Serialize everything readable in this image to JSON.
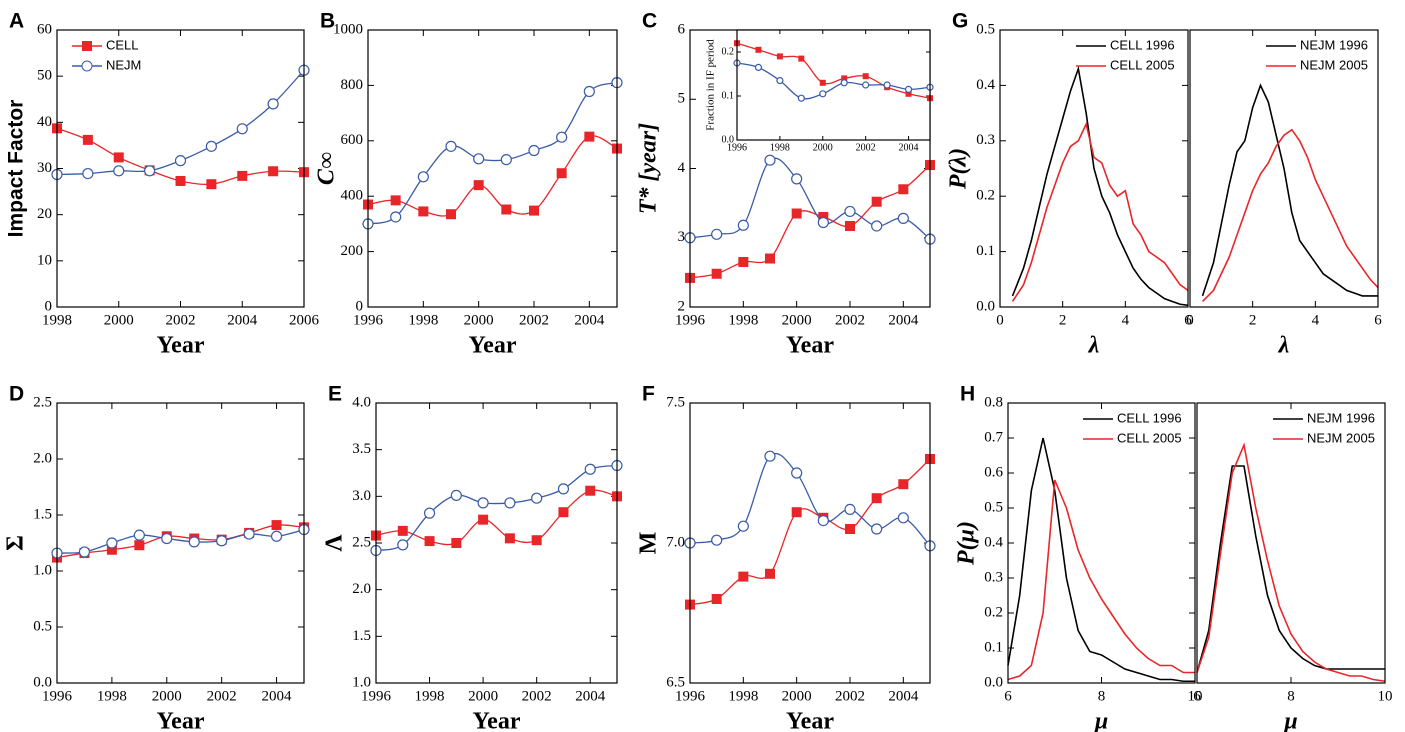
{
  "chart_data": [
    {
      "type": "line",
      "panel": "A",
      "xlabel": "Year",
      "ylabel": "Impact Factor",
      "smooth": true,
      "legend": "upper left",
      "x": [
        1998,
        1999,
        2000,
        2001,
        2002,
        2003,
        2004,
        2005,
        2006
      ],
      "xlim": [
        1998,
        2006
      ],
      "xticks": [
        1998,
        2000,
        2002,
        2004,
        2006
      ],
      "ylim": [
        0,
        60
      ],
      "yticks": [
        0,
        10,
        20,
        30,
        40,
        50,
        60
      ],
      "series": [
        {
          "name": "CELL",
          "color": "#e8262a",
          "marker": "square",
          "values": [
            38.7,
            36.2,
            32.4,
            29.6,
            27.3,
            26.6,
            28.4,
            29.4,
            29.2
          ]
        },
        {
          "name": "NEJM",
          "color": "#3a5ba8",
          "marker": "circle",
          "values": [
            28.7,
            28.9,
            29.5,
            29.5,
            31.7,
            34.8,
            38.6,
            44.0,
            51.3
          ]
        }
      ]
    },
    {
      "type": "line",
      "panel": "B",
      "xlabel": "Year",
      "ylabel": "C∞",
      "smooth": true,
      "x": [
        1996,
        1997,
        1998,
        1999,
        2000,
        2001,
        2002,
        2003,
        2004,
        2005
      ],
      "xlim": [
        1996,
        2005
      ],
      "xticks": [
        1996,
        1998,
        2000,
        2002,
        2004
      ],
      "ylim": [
        0,
        1000
      ],
      "yticks": [
        0,
        200,
        400,
        600,
        800,
        1000
      ],
      "series": [
        {
          "color": "#e8262a",
          "marker": "square",
          "values": [
            370,
            385,
            345,
            335,
            440,
            352,
            348,
            483,
            615,
            572
          ]
        },
        {
          "color": "#3a5ba8",
          "marker": "circle",
          "values": [
            300,
            325,
            470,
            580,
            535,
            532,
            565,
            613,
            778,
            810
          ]
        }
      ]
    },
    {
      "type": "line",
      "panel": "C",
      "xlabel": "Year",
      "ylabel": "T* [year]",
      "smooth": true,
      "x": [
        1996,
        1997,
        1998,
        1999,
        2000,
        2001,
        2002,
        2003,
        2004,
        2005
      ],
      "xlim": [
        1996,
        2005
      ],
      "xticks": [
        1996,
        1998,
        2000,
        2002,
        2004
      ],
      "ylim": [
        2,
        6
      ],
      "yticks": [
        2,
        3,
        4,
        5,
        6
      ],
      "series": [
        {
          "color": "#e8262a",
          "marker": "square",
          "values": [
            2.42,
            2.48,
            2.65,
            2.7,
            3.35,
            3.3,
            3.17,
            3.52,
            3.7,
            4.05
          ]
        },
        {
          "color": "#3a5ba8",
          "marker": "circle",
          "values": [
            3.0,
            3.05,
            3.18,
            4.12,
            3.85,
            3.22,
            3.38,
            3.17,
            3.28,
            2.98
          ]
        }
      ]
    },
    {
      "type": "line",
      "ylabel": "Fraction in IF period",
      "smooth": true,
      "x": [
        1996,
        1997,
        1998,
        1999,
        2000,
        2001,
        2002,
        2003,
        2004,
        2005
      ],
      "xlim": [
        1996,
        2005
      ],
      "xticks": [
        1996,
        1998,
        2000,
        2002,
        2004
      ],
      "ylim": [
        0,
        0.25
      ],
      "yticks": [
        {
          "value": 0,
          "label": "0.0"
        },
        0.1,
        0.2
      ],
      "series": [
        {
          "color": "#e8262a",
          "marker": "square",
          "values": [
            0.22,
            0.205,
            0.19,
            0.185,
            0.13,
            0.14,
            0.145,
            0.12,
            0.105,
            0.095
          ]
        },
        {
          "color": "#3a5ba8",
          "marker": "circle",
          "values": [
            0.175,
            0.165,
            0.135,
            0.095,
            0.105,
            0.13,
            0.125,
            0.125,
            0.115,
            0.12
          ]
        }
      ]
    },
    {
      "type": "line",
      "panel": "G",
      "xlabel": "λ",
      "ylabel": "P(λ)",
      "legend": "upper right",
      "x": [
        0.4,
        0.75,
        1,
        1.25,
        1.5,
        1.75,
        2,
        2.25,
        2.5,
        2.75,
        3,
        3.25,
        3.5,
        3.75,
        4,
        4.25,
        4.5,
        4.75,
        5,
        5.25,
        5.5,
        5.75,
        6
      ],
      "xlim": [
        0,
        6
      ],
      "xticks": [
        0,
        2,
        4,
        6
      ],
      "ylim": [
        0,
        0.5
      ],
      "yticks": [
        {
          "value": 0,
          "label": "0.0"
        },
        0.1,
        0.2,
        0.3,
        0.4,
        0.5
      ],
      "series": [
        {
          "name": "CELL 1996",
          "color": "#000000",
          "values": [
            0.02,
            0.07,
            0.12,
            0.18,
            0.24,
            0.29,
            0.34,
            0.39,
            0.43,
            0.35,
            0.25,
            0.2,
            0.17,
            0.13,
            0.1,
            0.07,
            0.05,
            0.035,
            0.025,
            0.015,
            0.01,
            0.005,
            0.003
          ]
        },
        {
          "name": "CELL 2005",
          "color": "#e8262a",
          "values": [
            0.01,
            0.04,
            0.08,
            0.13,
            0.18,
            0.22,
            0.26,
            0.29,
            0.3,
            0.33,
            0.27,
            0.26,
            0.22,
            0.2,
            0.21,
            0.15,
            0.13,
            0.1,
            0.09,
            0.08,
            0.06,
            0.04,
            0.03
          ]
        }
      ]
    },
    {
      "type": "line",
      "xlabel": "λ",
      "legend": "upper right",
      "x": [
        0.4,
        0.75,
        1,
        1.25,
        1.5,
        1.75,
        2,
        2.25,
        2.5,
        2.75,
        3,
        3.25,
        3.5,
        3.75,
        4,
        4.25,
        4.5,
        4.75,
        5,
        5.25,
        5.5,
        5.75,
        6
      ],
      "xlim": [
        0,
        6
      ],
      "xticks": [
        0,
        2,
        4,
        6
      ],
      "ylim": [
        0,
        0.5
      ],
      "series": [
        {
          "name": "NEJM 1996",
          "color": "#000000",
          "values": [
            0.02,
            0.08,
            0.15,
            0.22,
            0.28,
            0.3,
            0.36,
            0.4,
            0.37,
            0.31,
            0.25,
            0.17,
            0.12,
            0.1,
            0.08,
            0.06,
            0.05,
            0.04,
            0.03,
            0.025,
            0.02,
            0.02,
            0.02
          ]
        },
        {
          "name": "NEJM 2005",
          "color": "#e8262a",
          "values": [
            0.01,
            0.03,
            0.06,
            0.09,
            0.13,
            0.17,
            0.21,
            0.24,
            0.26,
            0.29,
            0.31,
            0.32,
            0.3,
            0.27,
            0.23,
            0.2,
            0.17,
            0.14,
            0.11,
            0.09,
            0.07,
            0.05,
            0.035
          ]
        }
      ]
    },
    {
      "type": "line",
      "panel": "D",
      "xlabel": "Year",
      "ylabel": "Σ",
      "smooth": true,
      "x": [
        1996,
        1997,
        1998,
        1999,
        2000,
        2001,
        2002,
        2003,
        2004,
        2005
      ],
      "xlim": [
        1996,
        2005
      ],
      "xticks": [
        1996,
        1998,
        2000,
        2002,
        2004
      ],
      "ylim": [
        0,
        2.5
      ],
      "yticks": [
        {
          "value": 0,
          "label": "0.0"
        },
        0.5,
        {
          "value": 1,
          "label": "1.0"
        },
        1.5,
        {
          "value": 2,
          "label": "2.0"
        },
        2.5
      ],
      "series": [
        {
          "color": "#e8262a",
          "marker": "square",
          "values": [
            1.12,
            1.16,
            1.19,
            1.23,
            1.31,
            1.29,
            1.28,
            1.34,
            1.41,
            1.39
          ]
        },
        {
          "color": "#3a5ba8",
          "marker": "circle",
          "values": [
            1.16,
            1.17,
            1.25,
            1.32,
            1.29,
            1.26,
            1.27,
            1.33,
            1.31,
            1.37
          ]
        }
      ]
    },
    {
      "type": "line",
      "panel": "E",
      "xlabel": "Year",
      "ylabel": "Λ",
      "smooth": true,
      "x": [
        1996,
        1997,
        1998,
        1999,
        2000,
        2001,
        2002,
        2003,
        2004,
        2005
      ],
      "xlim": [
        1996,
        2005
      ],
      "xticks": [
        1996,
        1998,
        2000,
        2002,
        2004
      ],
      "ylim": [
        1,
        4
      ],
      "yticks": [
        {
          "value": 1,
          "label": "1.0"
        },
        1.5,
        {
          "value": 2,
          "label": "2.0"
        },
        2.5,
        {
          "value": 3,
          "label": "3.0"
        },
        3.5,
        {
          "value": 4,
          "label": "4.0"
        }
      ],
      "series": [
        {
          "color": "#e8262a",
          "marker": "square",
          "values": [
            2.58,
            2.63,
            2.52,
            2.5,
            2.75,
            2.55,
            2.53,
            2.83,
            3.06,
            3.0
          ]
        },
        {
          "color": "#3a5ba8",
          "marker": "circle",
          "values": [
            2.42,
            2.48,
            2.82,
            3.01,
            2.93,
            2.93,
            2.98,
            3.08,
            3.29,
            3.33
          ]
        }
      ]
    },
    {
      "type": "line",
      "panel": "F",
      "xlabel": "Year",
      "ylabel": "M",
      "smooth": true,
      "x": [
        1996,
        1997,
        1998,
        1999,
        2000,
        2001,
        2002,
        2003,
        2004,
        2005
      ],
      "xlim": [
        1996,
        2005
      ],
      "xticks": [
        1996,
        1998,
        2000,
        2002,
        2004
      ],
      "ylim": [
        6.5,
        7.5
      ],
      "yticks": [
        6.5,
        {
          "value": 7,
          "label": "7.0"
        },
        7.5
      ],
      "series": [
        {
          "color": "#e8262a",
          "marker": "square",
          "values": [
            6.78,
            6.8,
            6.88,
            6.89,
            7.11,
            7.09,
            7.05,
            7.16,
            7.21,
            7.3
          ]
        },
        {
          "color": "#3a5ba8",
          "marker": "circle",
          "values": [
            7.0,
            7.01,
            7.06,
            7.31,
            7.25,
            7.08,
            7.12,
            7.05,
            7.09,
            6.99
          ]
        }
      ]
    },
    {
      "type": "line",
      "panel": "H",
      "xlabel": "μ",
      "ylabel": "P(μ)",
      "legend": "upper right",
      "x": [
        6,
        6.25,
        6.5,
        6.75,
        7,
        7.25,
        7.5,
        7.75,
        8,
        8.25,
        8.5,
        8.75,
        9,
        9.25,
        9.5,
        9.75,
        10
      ],
      "xlim": [
        6,
        10
      ],
      "xticks": [
        6,
        8,
        10
      ],
      "ylim": [
        0,
        0.8
      ],
      "yticks": [
        {
          "value": 0,
          "label": "0.0"
        },
        0.1,
        0.2,
        0.3,
        0.4,
        0.5,
        0.6,
        0.7,
        0.8
      ],
      "series": [
        {
          "name": "CELL 1996",
          "color": "#000000",
          "values": [
            0.05,
            0.25,
            0.55,
            0.7,
            0.55,
            0.3,
            0.15,
            0.09,
            0.08,
            0.06,
            0.04,
            0.03,
            0.02,
            0.01,
            0.01,
            0.005,
            0.005
          ]
        },
        {
          "name": "CELL 2005",
          "color": "#e8262a",
          "values": [
            0.01,
            0.02,
            0.05,
            0.2,
            0.58,
            0.5,
            0.38,
            0.3,
            0.24,
            0.19,
            0.14,
            0.1,
            0.07,
            0.05,
            0.05,
            0.03,
            0.03
          ]
        }
      ]
    },
    {
      "type": "line",
      "xlabel": "μ",
      "legend": "upper right",
      "x": [
        6,
        6.25,
        6.5,
        6.75,
        7,
        7.25,
        7.5,
        7.75,
        8,
        8.25,
        8.5,
        8.75,
        9,
        9.25,
        9.5,
        9.75,
        10
      ],
      "xlim": [
        6,
        10
      ],
      "xticks": [
        6,
        8,
        10
      ],
      "ylim": [
        0,
        0.8
      ],
      "series": [
        {
          "name": "NEJM 1996",
          "color": "#000000",
          "values": [
            0.03,
            0.15,
            0.4,
            0.62,
            0.62,
            0.42,
            0.25,
            0.15,
            0.1,
            0.07,
            0.05,
            0.04,
            0.04,
            0.04,
            0.04,
            0.04,
            0.04
          ]
        },
        {
          "name": "NEJM 2005",
          "color": "#e8262a",
          "values": [
            0.03,
            0.13,
            0.37,
            0.6,
            0.68,
            0.5,
            0.35,
            0.22,
            0.14,
            0.09,
            0.06,
            0.04,
            0.03,
            0.02,
            0.02,
            0.01,
            0.005
          ]
        }
      ]
    }
  ]
}
